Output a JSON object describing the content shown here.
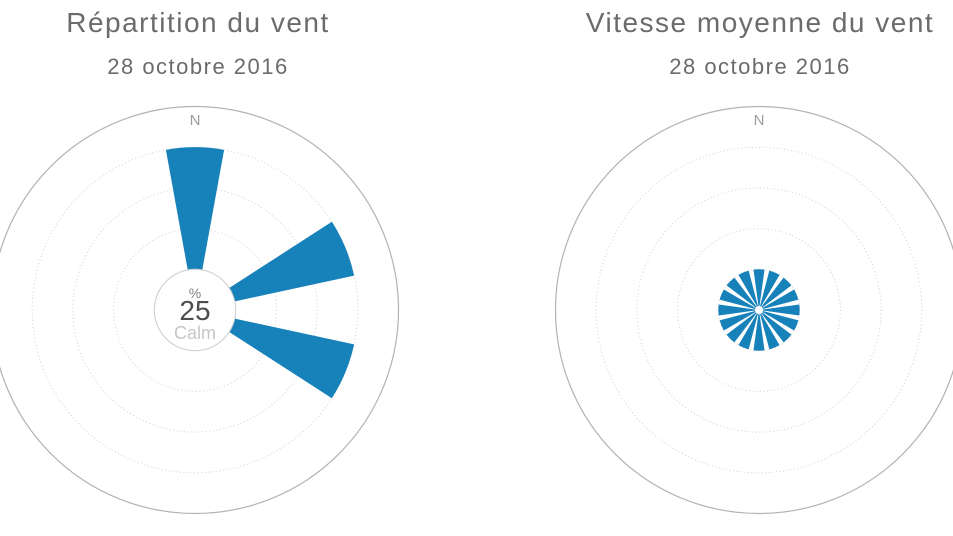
{
  "page": {
    "background": "#ffffff"
  },
  "colors": {
    "series_blue": "#1781ba",
    "outer_axis_ring": "#b3b3b3",
    "dotted_gridline": "#cfcfcf",
    "calm_circle_border": "#cccccc",
    "title_text": "#6b6b6b",
    "compass_text": "#9c9c9c",
    "calm_value_text": "#4d4d4d",
    "calm_caption_text": "#c6c6c6",
    "unit_text": "#7f7f7f"
  },
  "chart_data": [
    {
      "type": "windrose",
      "title": "Répartition du vent",
      "subtitle": "28 octobre 2016",
      "compass_label": "N",
      "grid": {
        "rings_dotted": 4,
        "outer_ring": true,
        "ring_step_fraction": 0.2,
        "tick_labels": "none"
      },
      "center_label": {
        "unit": "%",
        "value": "25",
        "caption": "Calm"
      },
      "calm_percent": 25,
      "sector_width_deg": 22.5,
      "legend": false,
      "points": [
        {
          "direction": "N",
          "angle_deg": 0,
          "value_pct": 25,
          "ring_reached": 4
        },
        {
          "direction": "ENE",
          "angle_deg": 67.5,
          "value_pct": 25,
          "ring_reached": 4
        },
        {
          "direction": "ESE",
          "angle_deg": 112.5,
          "value_pct": 25,
          "ring_reached": 4
        }
      ]
    },
    {
      "type": "windrose",
      "title": "Vitesse moyenne du vent",
      "subtitle": "28 octobre 2016",
      "compass_label": "N",
      "grid": {
        "rings_dotted": 4,
        "outer_ring": true,
        "ring_step_fraction": 0.2,
        "tick_labels": "none"
      },
      "sector_width_deg": 22.5,
      "legend": false,
      "points": [
        {
          "direction": "N",
          "angle_deg": 0,
          "ring_reached": 1
        },
        {
          "direction": "NNE",
          "angle_deg": 22.5,
          "ring_reached": 1
        },
        {
          "direction": "NE",
          "angle_deg": 45,
          "ring_reached": 1
        },
        {
          "direction": "ENE",
          "angle_deg": 67.5,
          "ring_reached": 1
        },
        {
          "direction": "E",
          "angle_deg": 90,
          "ring_reached": 1
        },
        {
          "direction": "ESE",
          "angle_deg": 112.5,
          "ring_reached": 1
        },
        {
          "direction": "SE",
          "angle_deg": 135,
          "ring_reached": 1
        },
        {
          "direction": "SSE",
          "angle_deg": 157.5,
          "ring_reached": 1
        },
        {
          "direction": "S",
          "angle_deg": 180,
          "ring_reached": 1
        },
        {
          "direction": "SSW",
          "angle_deg": 202.5,
          "ring_reached": 1
        },
        {
          "direction": "SW",
          "angle_deg": 225,
          "ring_reached": 1
        },
        {
          "direction": "WSW",
          "angle_deg": 247.5,
          "ring_reached": 1
        },
        {
          "direction": "W",
          "angle_deg": 270,
          "ring_reached": 1
        },
        {
          "direction": "WNW",
          "angle_deg": 292.5,
          "ring_reached": 1
        },
        {
          "direction": "NW",
          "angle_deg": 315,
          "ring_reached": 1
        },
        {
          "direction": "NNW",
          "angle_deg": 337.5,
          "ring_reached": 1
        }
      ]
    }
  ]
}
